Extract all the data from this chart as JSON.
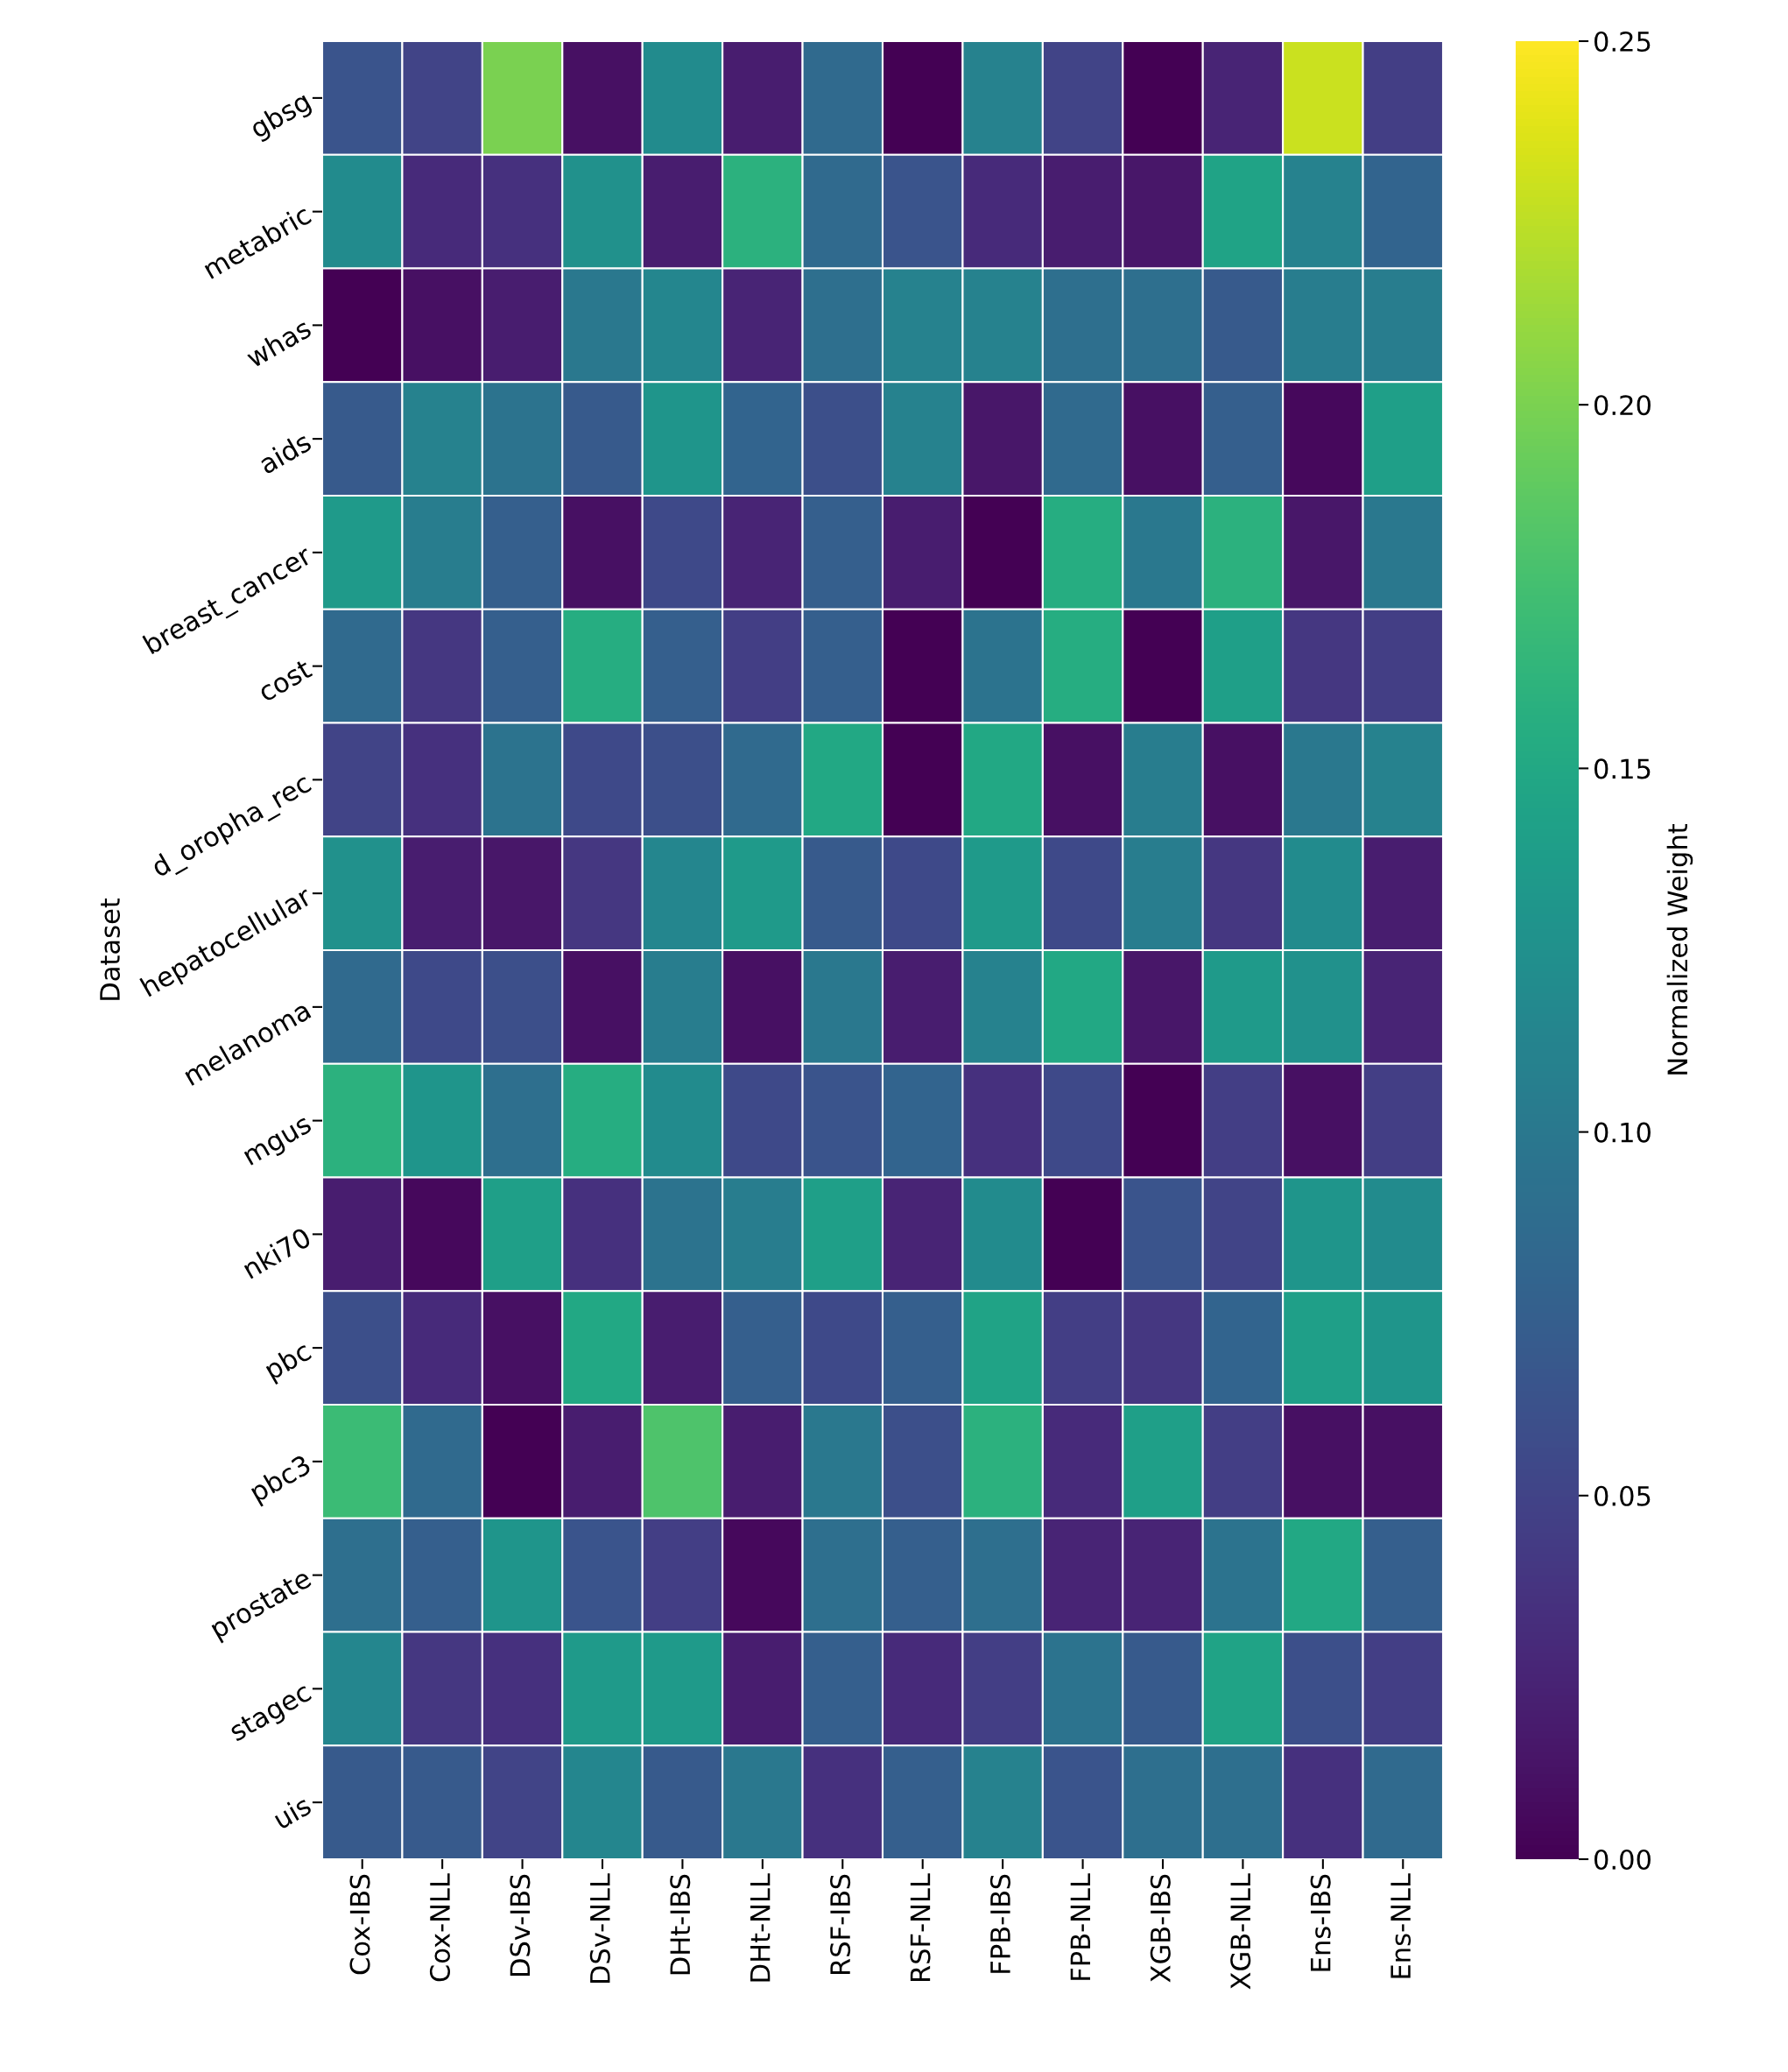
{
  "chart_data": {
    "type": "heatmap",
    "ylabel": "Dataset",
    "clabel": "Normalized Weight",
    "categories": [
      "Cox-IBS",
      "Cox-NLL",
      "DSv-IBS",
      "DSv-NLL",
      "DHt-IBS",
      "DHt-NLL",
      "RSF-IBS",
      "RSF-NLL",
      "FPB-IBS",
      "FPB-NLL",
      "XGB-IBS",
      "XGB-NLL",
      "Ens-IBS",
      "Ens-NLL"
    ],
    "y_categories": [
      "gbsg",
      "metabric",
      "whas",
      "aids",
      "breast_cancer",
      "cost",
      "d_oropha_rec",
      "hepatocellular",
      "melanoma",
      "mgus",
      "nki70",
      "pbc",
      "pbc3",
      "prostate",
      "stagec",
      "uis"
    ],
    "cells": [
      [
        0.065,
        0.05,
        0.2,
        0.01,
        0.12,
        0.02,
        0.085,
        0.0,
        0.11,
        0.05,
        0.0,
        0.025,
        0.23,
        0.045
      ],
      [
        0.12,
        0.03,
        0.035,
        0.125,
        0.02,
        0.16,
        0.085,
        0.065,
        0.03,
        0.02,
        0.015,
        0.145,
        0.11,
        0.08
      ],
      [
        0.0,
        0.01,
        0.02,
        0.1,
        0.115,
        0.025,
        0.09,
        0.11,
        0.11,
        0.09,
        0.09,
        0.07,
        0.105,
        0.105
      ],
      [
        0.07,
        0.11,
        0.095,
        0.07,
        0.13,
        0.08,
        0.06,
        0.11,
        0.015,
        0.085,
        0.01,
        0.075,
        0.005,
        0.14
      ],
      [
        0.135,
        0.105,
        0.075,
        0.01,
        0.055,
        0.025,
        0.075,
        0.02,
        0.0,
        0.155,
        0.1,
        0.16,
        0.015,
        0.1
      ],
      [
        0.085,
        0.04,
        0.075,
        0.155,
        0.075,
        0.045,
        0.075,
        0.0,
        0.095,
        0.155,
        0.0,
        0.14,
        0.04,
        0.045
      ],
      [
        0.05,
        0.035,
        0.095,
        0.055,
        0.06,
        0.085,
        0.15,
        0.0,
        0.15,
        0.01,
        0.105,
        0.01,
        0.1,
        0.11
      ],
      [
        0.125,
        0.02,
        0.015,
        0.04,
        0.115,
        0.135,
        0.07,
        0.055,
        0.135,
        0.055,
        0.105,
        0.04,
        0.12,
        0.02
      ],
      [
        0.085,
        0.055,
        0.06,
        0.01,
        0.105,
        0.01,
        0.1,
        0.02,
        0.11,
        0.15,
        0.015,
        0.135,
        0.125,
        0.025
      ],
      [
        0.16,
        0.13,
        0.09,
        0.155,
        0.12,
        0.055,
        0.065,
        0.08,
        0.035,
        0.055,
        0.0,
        0.045,
        0.01,
        0.045
      ],
      [
        0.02,
        0.005,
        0.14,
        0.035,
        0.095,
        0.105,
        0.14,
        0.025,
        0.12,
        0.0,
        0.065,
        0.05,
        0.13,
        0.12
      ],
      [
        0.06,
        0.03,
        0.01,
        0.15,
        0.02,
        0.075,
        0.055,
        0.075,
        0.145,
        0.045,
        0.04,
        0.08,
        0.14,
        0.13
      ],
      [
        0.17,
        0.085,
        0.0,
        0.02,
        0.18,
        0.02,
        0.1,
        0.06,
        0.16,
        0.03,
        0.14,
        0.045,
        0.01,
        0.01
      ],
      [
        0.09,
        0.075,
        0.13,
        0.065,
        0.045,
        0.005,
        0.09,
        0.075,
        0.09,
        0.025,
        0.025,
        0.095,
        0.15,
        0.075
      ],
      [
        0.115,
        0.04,
        0.035,
        0.135,
        0.135,
        0.02,
        0.075,
        0.03,
        0.045,
        0.095,
        0.07,
        0.145,
        0.06,
        0.045
      ],
      [
        0.07,
        0.07,
        0.05,
        0.115,
        0.07,
        0.1,
        0.035,
        0.075,
        0.11,
        0.065,
        0.09,
        0.09,
        0.035,
        0.085
      ]
    ],
    "clim": [
      0.0,
      0.25
    ],
    "cticks": [
      {
        "value": 0.0,
        "label": "0.00"
      },
      {
        "value": 0.05,
        "label": "0.05"
      },
      {
        "value": 0.1,
        "label": "0.10"
      },
      {
        "value": 0.15,
        "label": "0.15"
      },
      {
        "value": 0.2,
        "label": "0.20"
      },
      {
        "value": 0.25,
        "label": "0.25"
      }
    ]
  }
}
